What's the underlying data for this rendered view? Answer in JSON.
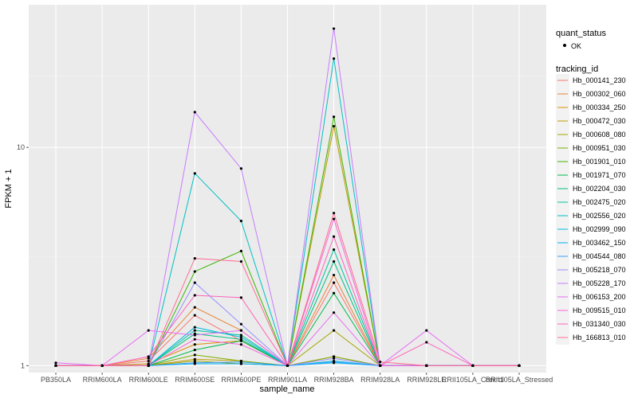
{
  "chart_data": {
    "type": "line",
    "xlabel": "sample_name",
    "ylabel": "FPKM + 1",
    "y_scale": "log10",
    "ylim": [
      0.93,
      45
    ],
    "y_ticks": [
      {
        "value": 1,
        "label": "1"
      },
      {
        "value": 10,
        "label": "10"
      }
    ],
    "categories": [
      "PB350LA",
      "RRIM600LA",
      "RRIM600LE",
      "RRIM600SE",
      "RRIM600PE",
      "RRIM901LA",
      "RRIM928BA",
      "RRIM928LA",
      "RRIM928LE",
      "RRII105LA_Control",
      "RRII105LA_Stressed"
    ],
    "category_labels": [
      "PB350LA",
      "RRIM600LA",
      "RRIM600LE",
      "RRIM600SE",
      "RRIM600PE",
      "RRIM901LA",
      "RRIM928BA",
      "RRIM928LA",
      "RRIM928LE",
      "RRII105LA_Control",
      "RRII105LA_Stressed"
    ],
    "legend_quant": {
      "title": "quant_status",
      "items": [
        "OK"
      ]
    },
    "legend_title": "tracking_id",
    "series": [
      {
        "name": "Hb_000141_230",
        "color": "#F8766D",
        "values": [
          1.0,
          1.0,
          1.05,
          1.7,
          1.3,
          1.0,
          2.4,
          1.0,
          1.0,
          1.0,
          1.0
        ]
      },
      {
        "name": "Hb_000302_060",
        "color": "#EA8331",
        "values": [
          1.0,
          1.0,
          1.08,
          1.85,
          1.45,
          1.0,
          2.6,
          1.0,
          1.0,
          1.0,
          1.0
        ]
      },
      {
        "name": "Hb_000334_250",
        "color": "#D89000",
        "values": [
          1.0,
          1.0,
          1.02,
          1.25,
          1.3,
          1.0,
          1.1,
          1.0,
          1.0,
          1.0,
          1.0
        ]
      },
      {
        "name": "Hb_000472_030",
        "color": "#C09B00",
        "values": [
          1.0,
          1.0,
          1.0,
          1.07,
          1.05,
          1.0,
          12.5,
          1.0,
          1.0,
          1.0,
          1.0
        ]
      },
      {
        "name": "Hb_000608_080",
        "color": "#A3A500",
        "values": [
          1.0,
          1.0,
          1.0,
          1.05,
          1.02,
          1.0,
          1.45,
          1.0,
          1.0,
          1.0,
          1.0
        ]
      },
      {
        "name": "Hb_000951_030",
        "color": "#7CAE00",
        "values": [
          1.0,
          1.0,
          1.0,
          1.12,
          1.05,
          1.0,
          1.1,
          1.0,
          1.0,
          1.0,
          1.0
        ]
      },
      {
        "name": "Hb_001901_010",
        "color": "#39B600",
        "values": [
          1.0,
          1.0,
          1.0,
          2.7,
          3.35,
          1.0,
          13.8,
          1.0,
          1.0,
          1.0,
          1.0
        ]
      },
      {
        "name": "Hb_001971_070",
        "color": "#00BB4E",
        "values": [
          1.0,
          1.0,
          1.0,
          1.18,
          1.3,
          1.0,
          2.15,
          1.0,
          1.0,
          1.0,
          1.0
        ]
      },
      {
        "name": "Hb_002204_030",
        "color": "#00BF7D",
        "values": [
          1.0,
          1.0,
          1.0,
          1.4,
          1.32,
          1.0,
          3.0,
          1.0,
          1.0,
          1.0,
          1.0
        ]
      },
      {
        "name": "Hb_002475_020",
        "color": "#00C1A3",
        "values": [
          1.0,
          1.0,
          1.0,
          1.45,
          1.38,
          1.0,
          3.4,
          1.0,
          1.0,
          1.0,
          1.0
        ]
      },
      {
        "name": "Hb_002556_020",
        "color": "#00BFC4",
        "values": [
          1.0,
          1.0,
          1.0,
          7.6,
          4.6,
          1.0,
          25.5,
          1.0,
          1.0,
          1.0,
          1.0
        ]
      },
      {
        "name": "Hb_002999_090",
        "color": "#00BAE0",
        "values": [
          1.0,
          1.0,
          1.0,
          1.5,
          1.35,
          1.0,
          1.05,
          1.0,
          1.0,
          1.0,
          1.0
        ]
      },
      {
        "name": "Hb_003462_150",
        "color": "#00B0F6",
        "values": [
          1.0,
          1.0,
          1.0,
          1.02,
          1.02,
          1.0,
          1.03,
          1.0,
          1.0,
          1.0,
          1.0
        ]
      },
      {
        "name": "Hb_004544_080",
        "color": "#35A2FF",
        "values": [
          1.0,
          1.0,
          1.0,
          1.03,
          1.04,
          1.0,
          1.04,
          1.0,
          1.0,
          1.0,
          1.0
        ]
      },
      {
        "name": "Hb_005218_070",
        "color": "#9590FF",
        "values": [
          1.0,
          1.0,
          1.0,
          2.4,
          1.55,
          1.0,
          1.08,
          1.0,
          1.0,
          1.0,
          1.0
        ]
      },
      {
        "name": "Hb_005228_170",
        "color": "#C77CFF",
        "values": [
          1.0,
          1.0,
          1.0,
          14.5,
          8.0,
          1.0,
          35.0,
          1.0,
          1.0,
          1.0,
          1.0
        ]
      },
      {
        "name": "Hb_006153_200",
        "color": "#E76BF3",
        "values": [
          1.03,
          1.0,
          1.45,
          1.38,
          1.45,
          1.0,
          1.75,
          1.0,
          1.45,
          1.0,
          1.0
        ]
      },
      {
        "name": "Hb_009515_010",
        "color": "#FA62DB",
        "values": [
          1.0,
          1.0,
          1.0,
          1.32,
          1.25,
          1.0,
          4.7,
          1.0,
          1.0,
          1.0,
          1.0
        ]
      },
      {
        "name": "Hb_031340_030",
        "color": "#FF62BC",
        "values": [
          1.0,
          1.0,
          1.1,
          2.1,
          2.05,
          1.0,
          3.9,
          1.0,
          1.28,
          1.0,
          1.0
        ]
      },
      {
        "name": "Hb_166813_010",
        "color": "#FF6C91",
        "values": [
          1.0,
          1.0,
          1.0,
          3.1,
          3.0,
          1.0,
          5.0,
          1.04,
          1.0,
          1.0,
          1.0
        ]
      }
    ]
  }
}
